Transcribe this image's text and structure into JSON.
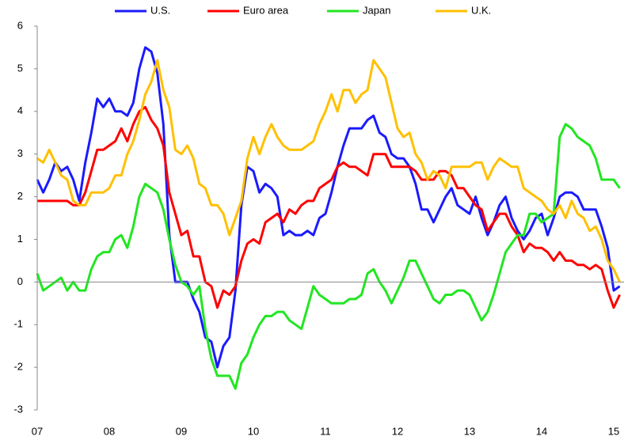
{
  "chart_data": {
    "type": "line",
    "categories": [
      "07",
      null,
      null,
      null,
      null,
      null,
      null,
      null,
      null,
      null,
      null,
      null,
      "08",
      null,
      null,
      null,
      null,
      null,
      null,
      null,
      null,
      null,
      null,
      null,
      "09",
      null,
      null,
      null,
      null,
      null,
      null,
      null,
      null,
      null,
      null,
      null,
      "10",
      null,
      null,
      null,
      null,
      null,
      null,
      null,
      null,
      null,
      null,
      null,
      "11",
      null,
      null,
      null,
      null,
      null,
      null,
      null,
      null,
      null,
      null,
      null,
      "12",
      null,
      null,
      null,
      null,
      null,
      null,
      null,
      null,
      null,
      null,
      null,
      "13",
      null,
      null,
      null,
      null,
      null,
      null,
      null,
      null,
      null,
      null,
      null,
      "14",
      null,
      null,
      null,
      null,
      null,
      null,
      null,
      null,
      null,
      null,
      null,
      "15",
      null
    ],
    "series": [
      {
        "name": "U.S.",
        "color": "#1a1aff",
        "values": [
          2.4,
          2.1,
          2.4,
          2.8,
          2.6,
          2.7,
          2.4,
          1.9,
          2.8,
          3.5,
          4.3,
          4.1,
          4.3,
          4.0,
          4.0,
          3.9,
          4.2,
          5.0,
          5.5,
          5.4,
          4.9,
          3.7,
          1.1,
          0.0,
          0.0,
          0.0,
          -0.4,
          -0.7,
          -1.3,
          -1.4,
          -2.0,
          -1.5,
          -1.3,
          -0.2,
          1.8,
          2.7,
          2.6,
          2.1,
          2.3,
          2.2,
          2.0,
          1.1,
          1.2,
          1.1,
          1.1,
          1.2,
          1.1,
          1.5,
          1.6,
          2.1,
          2.7,
          3.2,
          3.6,
          3.6,
          3.6,
          3.8,
          3.9,
          3.5,
          3.4,
          3.0,
          2.9,
          2.9,
          2.7,
          2.3,
          1.7,
          1.7,
          1.4,
          1.7,
          2.0,
          2.2,
          1.8,
          1.7,
          1.6,
          2.0,
          1.5,
          1.1,
          1.4,
          1.8,
          2.0,
          1.5,
          1.2,
          1.0,
          1.2,
          1.5,
          1.6,
          1.1,
          1.5,
          2.0,
          2.1,
          2.1,
          2.0,
          1.7,
          1.7,
          1.7,
          1.3,
          0.8,
          -0.2,
          -0.1
        ]
      },
      {
        "name": "Euro area",
        "color": "#ff0000",
        "values": [
          1.9,
          1.9,
          1.9,
          1.9,
          1.9,
          1.9,
          1.8,
          1.8,
          2.1,
          2.6,
          3.1,
          3.1,
          3.2,
          3.3,
          3.6,
          3.3,
          3.7,
          4.0,
          4.1,
          3.8,
          3.6,
          3.2,
          2.1,
          1.6,
          1.1,
          1.2,
          0.6,
          0.6,
          0.0,
          -0.1,
          -0.6,
          -0.2,
          -0.3,
          -0.1,
          0.5,
          0.9,
          1.0,
          0.9,
          1.4,
          1.5,
          1.6,
          1.4,
          1.7,
          1.6,
          1.8,
          1.9,
          1.9,
          2.2,
          2.3,
          2.4,
          2.7,
          2.8,
          2.7,
          2.7,
          2.6,
          2.5,
          3.0,
          3.0,
          3.0,
          2.7,
          2.7,
          2.7,
          2.7,
          2.6,
          2.4,
          2.4,
          2.4,
          2.6,
          2.6,
          2.5,
          2.2,
          2.2,
          2.0,
          1.8,
          1.7,
          1.2,
          1.4,
          1.6,
          1.6,
          1.3,
          1.1,
          0.7,
          0.9,
          0.8,
          0.8,
          0.7,
          0.5,
          0.7,
          0.5,
          0.5,
          0.4,
          0.4,
          0.3,
          0.4,
          0.3,
          -0.2,
          -0.6,
          -0.3
        ]
      },
      {
        "name": "Japan",
        "color": "#22e622",
        "values": [
          0.2,
          -0.2,
          -0.1,
          0.0,
          0.1,
          -0.2,
          0.0,
          -0.2,
          -0.2,
          0.3,
          0.6,
          0.7,
          0.7,
          1.0,
          1.1,
          0.8,
          1.3,
          2.0,
          2.3,
          2.2,
          2.1,
          1.7,
          1.0,
          0.4,
          0.0,
          -0.1,
          -0.3,
          -0.1,
          -1.1,
          -1.8,
          -2.2,
          -2.2,
          -2.2,
          -2.5,
          -1.9,
          -1.7,
          -1.3,
          -1.0,
          -0.8,
          -0.8,
          -0.7,
          -0.7,
          -0.9,
          -1.0,
          -1.1,
          -0.6,
          -0.1,
          -0.3,
          -0.4,
          -0.5,
          -0.5,
          -0.5,
          -0.4,
          -0.4,
          -0.3,
          0.2,
          0.3,
          0.0,
          -0.2,
          -0.5,
          -0.2,
          0.1,
          0.5,
          0.5,
          0.2,
          -0.1,
          -0.4,
          -0.5,
          -0.3,
          -0.3,
          -0.2,
          -0.2,
          -0.3,
          -0.6,
          -0.9,
          -0.7,
          -0.3,
          0.2,
          0.7,
          0.9,
          1.1,
          1.1,
          1.6,
          1.6,
          1.4,
          1.5,
          1.6,
          3.4,
          3.7,
          3.6,
          3.4,
          3.3,
          3.2,
          2.9,
          2.4,
          2.4,
          2.4,
          2.2
        ]
      },
      {
        "name": "U.K.",
        "color": "#ffc000",
        "values": [
          2.9,
          2.8,
          3.1,
          2.8,
          2.5,
          2.4,
          1.9,
          1.8,
          1.8,
          2.1,
          2.1,
          2.1,
          2.2,
          2.5,
          2.5,
          3.0,
          3.3,
          3.8,
          4.4,
          4.7,
          5.2,
          4.5,
          4.1,
          3.1,
          3.0,
          3.2,
          2.9,
          2.3,
          2.2,
          1.8,
          1.8,
          1.6,
          1.1,
          1.5,
          1.9,
          2.9,
          3.4,
          3.0,
          3.4,
          3.7,
          3.4,
          3.2,
          3.1,
          3.1,
          3.1,
          3.2,
          3.3,
          3.7,
          4.0,
          4.4,
          4.0,
          4.5,
          4.5,
          4.2,
          4.4,
          4.5,
          5.2,
          5.0,
          4.8,
          4.2,
          3.6,
          3.4,
          3.5,
          3.0,
          2.8,
          2.4,
          2.6,
          2.5,
          2.2,
          2.7,
          2.7,
          2.7,
          2.7,
          2.8,
          2.8,
          2.4,
          2.7,
          2.9,
          2.8,
          2.7,
          2.7,
          2.2,
          2.1,
          2.0,
          1.9,
          1.7,
          1.6,
          1.8,
          1.5,
          1.9,
          1.6,
          1.5,
          1.2,
          1.3,
          1.0,
          0.5,
          0.3,
          0.0
        ]
      }
    ],
    "ylim": [
      -3,
      6
    ],
    "yticks": [
      -3,
      -2,
      -1,
      0,
      1,
      2,
      3,
      4,
      5,
      6
    ],
    "legend": "top"
  }
}
